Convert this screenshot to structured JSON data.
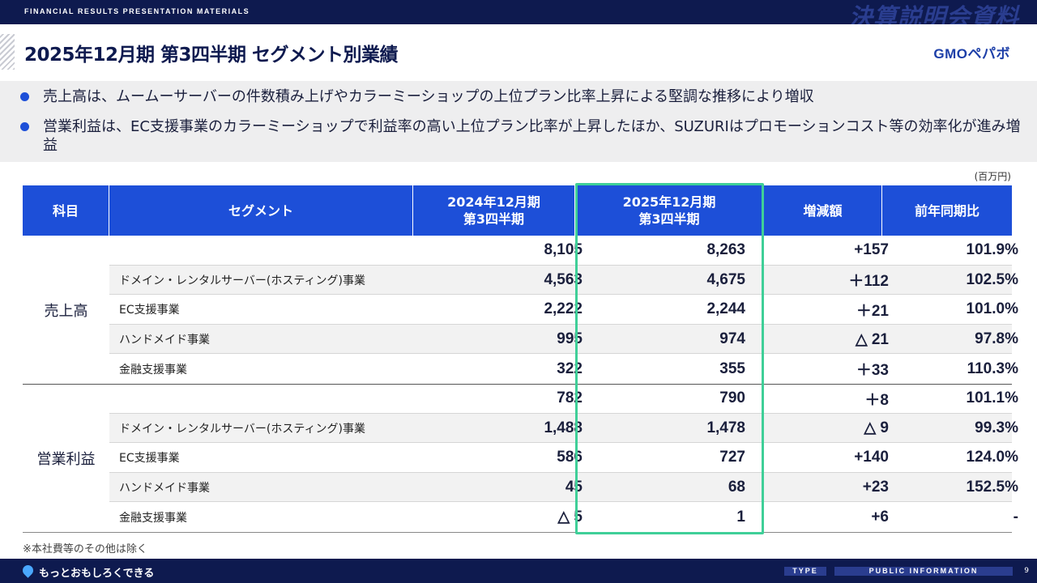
{
  "header": {
    "band_label": "FINANCIAL RESULTS PRESENTATION MATERIALS",
    "deck_title": "決算説明会資料",
    "page_title": "2025年12月期 第3四半期 セグメント別業績",
    "logo": "GMOペパボ"
  },
  "bullets": [
    "売上高は、ムームーサーバーの件数積み上げやカラーミーショップの上位プラン比率上昇による堅調な推移により増収",
    "営業利益は、EC支援事業のカラーミーショップで利益率の高い上位プラン比率が上昇したほか、SUZURIはプロモーションコスト等の効率化が進み増益"
  ],
  "unit": "(百万円)",
  "table": {
    "headers": {
      "subject": "科目",
      "segment": "セグメント",
      "prev_line1": "2024年12月期",
      "prev_line2": "第3四半期",
      "curr_line1": "2025年12月期",
      "curr_line2": "第3四半期",
      "change": "増減額",
      "yoy": "前年同期比"
    },
    "groups": [
      {
        "subject": "売上高",
        "rows": [
          {
            "segment": "",
            "prev": "8,105",
            "curr": "8,263",
            "change": "+157",
            "yoy": "101.9%"
          },
          {
            "segment": "ドメイン・レンタルサーバー(ホスティング)事業",
            "prev": "4,563",
            "curr": "4,675",
            "change": "＋112",
            "yoy": "102.5%"
          },
          {
            "segment": "EC支援事業",
            "prev": "2,222",
            "curr": "2,244",
            "change": "＋21",
            "yoy": "101.0%"
          },
          {
            "segment": "ハンドメイド事業",
            "prev": "995",
            "curr": "974",
            "change": "△ 21",
            "yoy": "97.8%"
          },
          {
            "segment": "金融支援事業",
            "prev": "322",
            "curr": "355",
            "change": "＋33",
            "yoy": "110.3%"
          }
        ]
      },
      {
        "subject": "営業利益",
        "rows": [
          {
            "segment": "",
            "prev": "782",
            "curr": "790",
            "change": "＋8",
            "yoy": "101.1%"
          },
          {
            "segment": "ドメイン・レンタルサーバー(ホスティング)事業",
            "prev": "1,488",
            "curr": "1,478",
            "change": "△ 9",
            "yoy": "99.3%"
          },
          {
            "segment": "EC支援事業",
            "prev": "586",
            "curr": "727",
            "change": "+140",
            "yoy": "124.0%"
          },
          {
            "segment": "ハンドメイド事業",
            "prev": "45",
            "curr": "68",
            "change": "+23",
            "yoy": "152.5%"
          },
          {
            "segment": "金融支援事業",
            "prev": "△ 5",
            "curr": "1",
            "change": "+6",
            "yoy": "-"
          }
        ]
      }
    ]
  },
  "footnote": "※本社費等のその他は除く",
  "footer": {
    "slogan": "もっとおもしろくできる",
    "type_tag": "TYPE",
    "public_tag": "PUBLIC INFORMATION",
    "page_number": "9"
  },
  "colors": {
    "navy": "#0e1a4f",
    "header_blue": "#1d4fd8",
    "highlight_green": "#3fcf98"
  }
}
